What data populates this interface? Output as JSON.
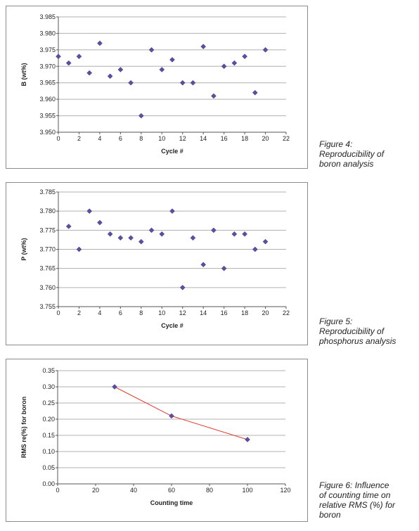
{
  "chart_data": [
    {
      "type": "scatter",
      "xlabel": "Cycle #",
      "ylabel": "B (wt%)",
      "xlim": [
        0,
        22
      ],
      "ylim": [
        3.95,
        3.985
      ],
      "xticks": [
        "0",
        "2",
        "4",
        "6",
        "8",
        "10",
        "12",
        "14",
        "16",
        "18",
        "20",
        "22"
      ],
      "yticks": [
        "3.950",
        "3.955",
        "3.960",
        "3.965",
        "3.970",
        "3.975",
        "3.980",
        "3.985"
      ],
      "grid": "horizontal",
      "marker_color": "#5b4fa0",
      "x": [
        0,
        1,
        2,
        3,
        4,
        5,
        6,
        7,
        8,
        9,
        10,
        11,
        12,
        13,
        14,
        15,
        16,
        17,
        18,
        19,
        20
      ],
      "y": [
        3.973,
        3.971,
        3.973,
        3.968,
        3.977,
        3.967,
        3.969,
        3.965,
        3.955,
        3.975,
        3.969,
        3.972,
        3.965,
        3.965,
        3.976,
        3.961,
        3.97,
        3.971,
        3.973,
        3.962,
        3.975
      ]
    },
    {
      "type": "scatter",
      "xlabel": "Cycle #",
      "ylabel": "P (wt%)",
      "xlim": [
        0,
        22
      ],
      "ylim": [
        3.755,
        3.785
      ],
      "xticks": [
        "0",
        "2",
        "4",
        "6",
        "8",
        "10",
        "12",
        "14",
        "16",
        "18",
        "20",
        "22"
      ],
      "yticks": [
        "3.755",
        "3.760",
        "3.765",
        "3.770",
        "3.775",
        "3.780",
        "3.785"
      ],
      "grid": "horizontal",
      "marker_color": "#5b4fa0",
      "x": [
        1,
        2,
        3,
        4,
        5,
        6,
        7,
        8,
        9,
        10,
        11,
        12,
        13,
        14,
        15,
        16,
        17,
        18,
        19,
        20
      ],
      "y": [
        3.776,
        3.77,
        3.78,
        3.777,
        3.774,
        3.773,
        3.773,
        3.772,
        3.775,
        3.774,
        3.78,
        3.76,
        3.773,
        3.766,
        3.775,
        3.765,
        3.774,
        3.774,
        3.77,
        3.772
      ]
    },
    {
      "type": "line",
      "xlabel": "Counting time",
      "ylabel": "RMS re(%) for boron",
      "xlim": [
        0,
        120
      ],
      "ylim": [
        0.0,
        0.35
      ],
      "xticks": [
        "0",
        "20",
        "40",
        "60",
        "80",
        "100",
        "120"
      ],
      "yticks": [
        "0.00",
        "0.05",
        "0.10",
        "0.15",
        "0.20",
        "0.25",
        "0.30",
        "0.35"
      ],
      "grid": "horizontal",
      "marker_color": "#5b4fa0",
      "line_color": "#e03a2c",
      "x": [
        30,
        60,
        100
      ],
      "y": [
        0.3,
        0.21,
        0.137
      ]
    }
  ],
  "captions": {
    "figure4": "Figure 4:\nReproducibility of\nboron analysis",
    "figure5": "Figure 5:\nReproducibility of\nphosphorus analysis",
    "figure6": "Figure 6: Influence\nof counting time on\nrelative RMS (%) for\nboron"
  }
}
